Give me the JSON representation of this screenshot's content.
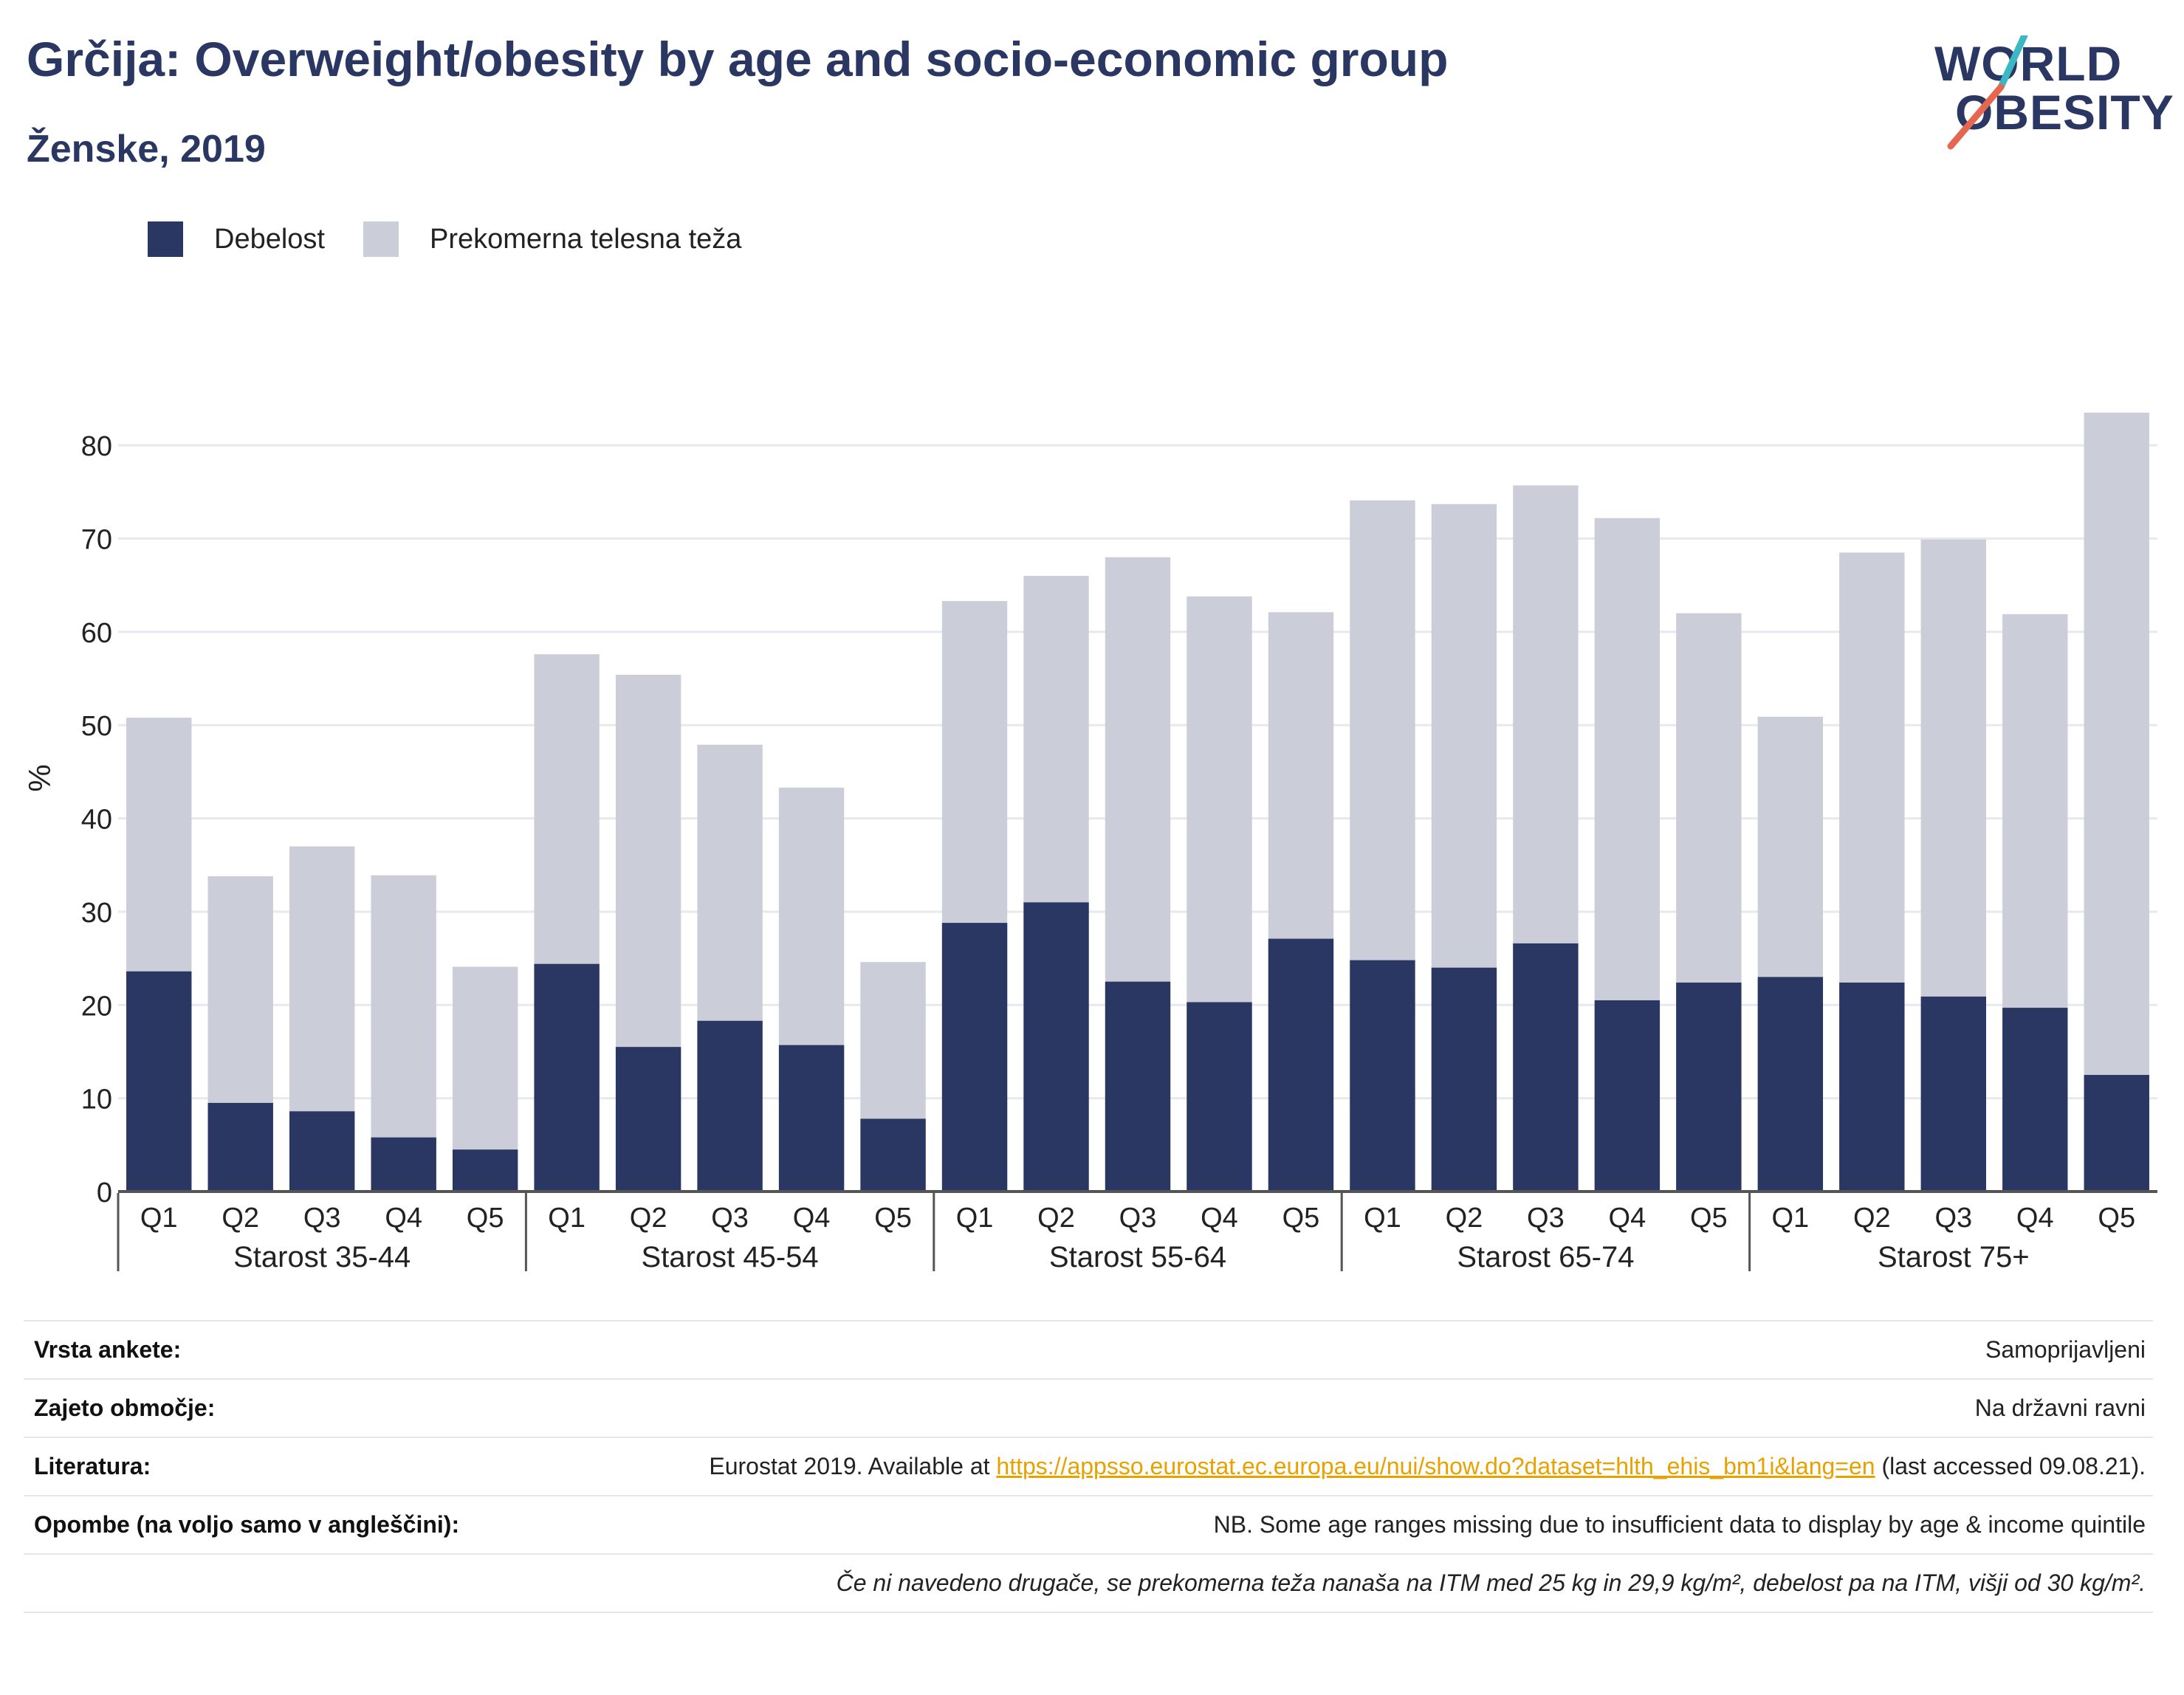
{
  "header": {
    "title": "Grčija: Overweight/obesity by age and socio-economic group",
    "subtitle": "Ženske, 2019"
  },
  "logo": {
    "line1": "WORLD",
    "line2": "OBESITY"
  },
  "legend": {
    "items": [
      {
        "label": "Debelost",
        "color": "#2b3763"
      },
      {
        "label": "Prekomerna telesna teža",
        "color": "#cbcdd8"
      }
    ]
  },
  "chart_data": {
    "type": "bar",
    "stacked": false,
    "ylabel": "%",
    "ylim": [
      0,
      85
    ],
    "yticks": [
      0,
      10,
      20,
      30,
      40,
      50,
      60,
      70,
      80
    ],
    "grid": true,
    "legend_position": "top-left",
    "groups": [
      {
        "label": "Starost 35-44",
        "categories": [
          "Q1",
          "Q2",
          "Q3",
          "Q4",
          "Q5"
        ],
        "obesity": [
          23.6,
          9.5,
          8.6,
          5.8,
          4.5
        ],
        "overweight": [
          50.8,
          33.8,
          37.0,
          33.9,
          24.1
        ]
      },
      {
        "label": "Starost 45-54",
        "categories": [
          "Q1",
          "Q2",
          "Q3",
          "Q4",
          "Q5"
        ],
        "obesity": [
          24.4,
          15.5,
          18.3,
          15.7,
          7.8
        ],
        "overweight": [
          57.6,
          55.4,
          47.9,
          43.3,
          24.6
        ]
      },
      {
        "label": "Starost 55-64",
        "categories": [
          "Q1",
          "Q2",
          "Q3",
          "Q4",
          "Q5"
        ],
        "obesity": [
          28.8,
          31.0,
          22.5,
          20.3,
          27.1
        ],
        "overweight": [
          63.3,
          66.0,
          68.0,
          63.8,
          62.1
        ]
      },
      {
        "label": "Starost 65-74",
        "categories": [
          "Q1",
          "Q2",
          "Q3",
          "Q4",
          "Q5"
        ],
        "obesity": [
          24.8,
          24.0,
          26.6,
          20.5,
          22.4
        ],
        "overweight": [
          74.1,
          73.7,
          75.7,
          72.2,
          62.0
        ]
      },
      {
        "label": "Starost 75+",
        "categories": [
          "Q1",
          "Q2",
          "Q3",
          "Q4",
          "Q5"
        ],
        "obesity": [
          23.0,
          22.4,
          20.9,
          19.7,
          12.5
        ],
        "overweight": [
          50.9,
          68.5,
          69.9,
          61.9,
          83.5
        ]
      }
    ],
    "colors": {
      "obesity": "#2b3763",
      "overweight": "#cbcdd8",
      "grid": "#e8e8ee",
      "axis": "#555555"
    }
  },
  "footer": {
    "survey_label": "Vrsta ankete:",
    "survey_value": "Samoprijavljeni",
    "coverage_label": "Zajeto območje:",
    "coverage_value": "Na državni ravni",
    "ref_label": "Literatura:",
    "ref_prefix": "Eurostat 2019. Available at ",
    "ref_link": "https://appsso.eurostat.ec.europa.eu/nui/show.do?dataset=hlth_ehis_bm1i&lang=en",
    "ref_suffix": " (last accessed 09.08.21).",
    "notes_label": "Opombe (na voljo samo v angleščini):",
    "notes_value": "NB. Some age ranges missing due to insufficient data to display by age & income quintile",
    "definition": "Če ni navedeno drugače, se prekomerna teža nanaša na ITM med 25 kg in 29,9 kg/m², debelost pa na ITM, višji od 30 kg/m²."
  }
}
